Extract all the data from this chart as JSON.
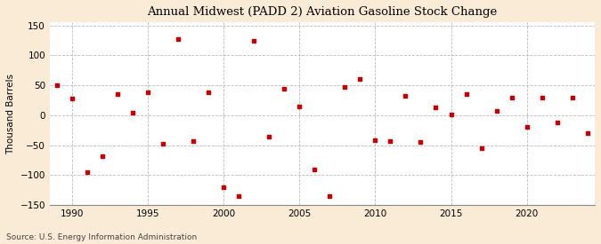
{
  "title": "Annual Midwest (PADD 2) Aviation Gasoline Stock Change",
  "ylabel": "Thousand Barrels",
  "source": "Source: U.S. Energy Information Administration",
  "background_color": "#faebd7",
  "plot_background_color": "#ffffff",
  "marker_color": "#cc0000",
  "ylim": [
    -150,
    155
  ],
  "yticks": [
    -150,
    -100,
    -50,
    0,
    50,
    100,
    150
  ],
  "xlim": [
    1988.5,
    2024.5
  ],
  "xticks": [
    1990,
    1995,
    2000,
    2005,
    2010,
    2015,
    2020
  ],
  "data": {
    "1989": 50,
    "1990": 28,
    "1991": -95,
    "1992": -68,
    "1993": 35,
    "1994": 5,
    "1995": 38,
    "1996": -48,
    "1997": 128,
    "1998": -43,
    "1999": 38,
    "2000": -120,
    "2001": -135,
    "2002": 125,
    "2003": -35,
    "2004": 45,
    "2005": 15,
    "2006": -90,
    "2007": -135,
    "2008": 48,
    "2009": 60,
    "2010": -42,
    "2011": -43,
    "2012": 32,
    "2013": -45,
    "2014": 13,
    "2015": 2,
    "2016": 35,
    "2017": -55,
    "2018": 8,
    "2019": 30,
    "2020": -20,
    "2021": 30,
    "2022": -12,
    "2023": 30,
    "2024": -30
  }
}
